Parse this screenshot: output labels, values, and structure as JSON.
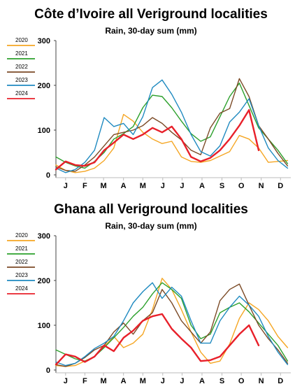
{
  "chart_data": [
    {
      "type": "line",
      "title": "Côte d’Ivoire all Veriground localities",
      "subtitle": "Rain, 30-day sum (mm)",
      "xlabel": "",
      "ylabel": "",
      "ylim": [
        0,
        300
      ],
      "yticks": [
        0,
        100,
        200,
        300
      ],
      "xlim": [
        0,
        365
      ],
      "month_labels": [
        "J",
        "F",
        "M",
        "A",
        "M",
        "J",
        "J",
        "A",
        "S",
        "O",
        "N",
        "D"
      ],
      "month_centers": [
        15,
        45,
        74,
        105,
        135,
        166,
        196,
        227,
        258,
        288,
        319,
        349
      ],
      "grid": false,
      "legend_position": "top-left",
      "series": [
        {
          "name": "2020",
          "color": "#f5a623",
          "x": [
            0,
            15,
            30,
            45,
            60,
            75,
            90,
            105,
            120,
            135,
            150,
            165,
            180,
            195,
            210,
            225,
            240,
            255,
            270,
            285,
            300,
            315,
            330,
            345,
            360
          ],
          "values": [
            22,
            10,
            5,
            8,
            15,
            32,
            60,
            135,
            120,
            95,
            80,
            70,
            75,
            40,
            30,
            28,
            32,
            42,
            52,
            88,
            80,
            60,
            28,
            30,
            32
          ]
        },
        {
          "name": "2021",
          "color": "#2ca02c",
          "x": [
            0,
            15,
            30,
            45,
            60,
            75,
            90,
            105,
            120,
            135,
            150,
            165,
            180,
            195,
            210,
            225,
            240,
            255,
            270,
            285,
            300,
            315,
            330,
            345,
            360
          ],
          "values": [
            40,
            28,
            20,
            15,
            30,
            50,
            80,
            92,
            108,
            150,
            178,
            175,
            150,
            120,
            92,
            75,
            85,
            130,
            175,
            205,
            155,
            105,
            80,
            55,
            25
          ]
        },
        {
          "name": "2022",
          "color": "#7b4a26",
          "x": [
            0,
            15,
            30,
            45,
            60,
            75,
            90,
            105,
            120,
            135,
            150,
            165,
            180,
            195,
            210,
            225,
            240,
            255,
            270,
            285,
            300,
            315,
            330,
            345,
            360
          ],
          "values": [
            18,
            10,
            8,
            22,
            40,
            65,
            90,
            95,
            100,
            110,
            128,
            115,
            95,
            78,
            55,
            45,
            105,
            138,
            148,
            215,
            175,
            110,
            80,
            48,
            20
          ]
        },
        {
          "name": "2023",
          "color": "#1f8ac0",
          "x": [
            0,
            15,
            30,
            45,
            60,
            75,
            90,
            105,
            120,
            135,
            150,
            165,
            180,
            195,
            210,
            225,
            240,
            255,
            270,
            285,
            300,
            315,
            330,
            345,
            360
          ],
          "values": [
            15,
            5,
            12,
            28,
            55,
            128,
            108,
            115,
            90,
            130,
            195,
            212,
            180,
            140,
            90,
            52,
            42,
            65,
            118,
            140,
            170,
            110,
            60,
            32,
            15
          ]
        },
        {
          "name": "2024",
          "color": "#e8202a",
          "x": [
            0,
            15,
            30,
            45,
            60,
            75,
            90,
            105,
            120,
            135,
            150,
            165,
            180,
            195,
            210,
            225,
            240,
            255,
            270,
            285,
            300,
            315
          ],
          "values": [
            12,
            30,
            22,
            20,
            28,
            55,
            72,
            90,
            80,
            90,
            105,
            95,
            108,
            80,
            40,
            30,
            38,
            55,
            80,
            110,
            145,
            55
          ]
        }
      ]
    },
    {
      "type": "line",
      "title": "Ghana all Veriground localities",
      "subtitle": "Rain, 30-day sum (mm)",
      "xlabel": "",
      "ylabel": "",
      "ylim": [
        0,
        300
      ],
      "yticks": [
        0,
        100,
        200,
        300
      ],
      "xlim": [
        0,
        365
      ],
      "month_labels": [
        "J",
        "F",
        "M",
        "A",
        "M",
        "J",
        "J",
        "A",
        "S",
        "O",
        "N",
        "D"
      ],
      "month_centers": [
        15,
        45,
        74,
        105,
        135,
        166,
        196,
        227,
        258,
        288,
        319,
        349
      ],
      "grid": false,
      "legend_position": "top-left",
      "series": [
        {
          "name": "2020",
          "color": "#f5a623",
          "x": [
            0,
            15,
            30,
            45,
            60,
            75,
            90,
            105,
            120,
            135,
            150,
            165,
            180,
            195,
            210,
            225,
            240,
            255,
            270,
            285,
            300,
            315,
            330,
            345,
            360
          ],
          "values": [
            10,
            8,
            10,
            20,
            30,
            52,
            75,
            50,
            60,
            80,
            135,
            205,
            180,
            135,
            85,
            40,
            15,
            20,
            58,
            115,
            150,
            135,
            110,
            75,
            50
          ]
        },
        {
          "name": "2021",
          "color": "#2ca02c",
          "x": [
            0,
            15,
            30,
            45,
            60,
            75,
            90,
            105,
            120,
            135,
            150,
            165,
            180,
            195,
            210,
            225,
            240,
            255,
            270,
            285,
            300,
            315,
            330,
            345,
            360
          ],
          "values": [
            45,
            35,
            25,
            20,
            30,
            50,
            72,
            95,
            120,
            140,
            170,
            195,
            180,
            160,
            100,
            70,
            80,
            128,
            140,
            150,
            130,
            105,
            80,
            55,
            20
          ]
        },
        {
          "name": "2022",
          "color": "#7b4a26",
          "x": [
            0,
            15,
            30,
            45,
            60,
            75,
            90,
            105,
            120,
            135,
            150,
            165,
            180,
            195,
            210,
            225,
            240,
            255,
            270,
            285,
            300,
            315,
            330,
            345,
            360
          ],
          "values": [
            12,
            8,
            15,
            28,
            45,
            55,
            85,
            105,
            80,
            110,
            128,
            180,
            150,
            110,
            85,
            60,
            85,
            155,
            180,
            192,
            145,
            100,
            70,
            45,
            15
          ]
        },
        {
          "name": "2023",
          "color": "#1f8ac0",
          "x": [
            0,
            15,
            30,
            45,
            60,
            75,
            90,
            105,
            120,
            135,
            150,
            165,
            180,
            195,
            210,
            225,
            240,
            255,
            270,
            285,
            300,
            315,
            330,
            345,
            360
          ],
          "values": [
            18,
            10,
            15,
            30,
            48,
            60,
            75,
            110,
            150,
            175,
            195,
            160,
            185,
            165,
            110,
            60,
            60,
            110,
            140,
            165,
            145,
            120,
            75,
            40,
            12
          ]
        },
        {
          "name": "2024",
          "color": "#e8202a",
          "x": [
            0,
            15,
            30,
            45,
            60,
            75,
            90,
            105,
            120,
            135,
            150,
            165,
            180,
            195,
            210,
            225,
            240,
            255,
            270,
            285,
            300,
            315
          ],
          "values": [
            12,
            35,
            30,
            18,
            30,
            55,
            42,
            72,
            88,
            110,
            120,
            125,
            92,
            70,
            50,
            20,
            22,
            30,
            55,
            80,
            100,
            55
          ]
        }
      ]
    }
  ]
}
